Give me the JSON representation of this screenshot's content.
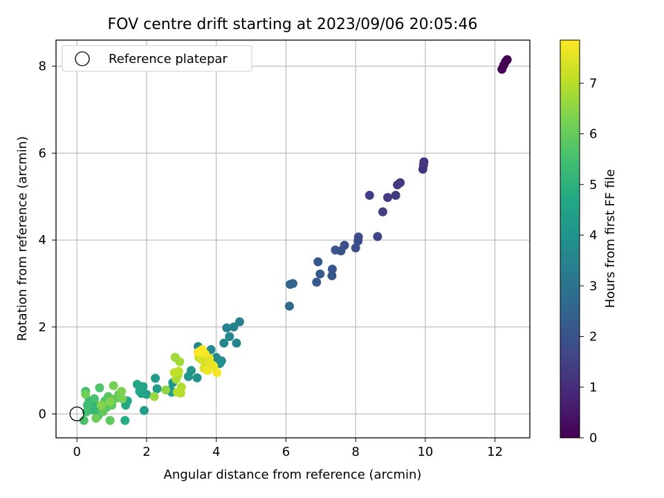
{
  "chart_data": {
    "type": "scatter",
    "title": "FOV centre drift starting at 2023/09/06 20:05:46",
    "xlabel": "Angular distance from reference (arcmin)",
    "ylabel": "Rotation from reference (arcmin)",
    "xlim": [
      -0.6,
      13.0
    ],
    "ylim": [
      -0.55,
      8.6
    ],
    "xticks": [
      0,
      2,
      4,
      6,
      8,
      10,
      12
    ],
    "yticks": [
      0,
      2,
      4,
      6,
      8
    ],
    "xtick_labels": [
      "0",
      "2",
      "4",
      "6",
      "8",
      "10",
      "12"
    ],
    "ytick_labels": [
      "0",
      "2",
      "4",
      "6",
      "8"
    ],
    "grid": true,
    "legend": {
      "position": "top-left",
      "entries": [
        "Reference platepar"
      ]
    },
    "reference_point": {
      "x": 0,
      "y": 0
    },
    "colorbar": {
      "label": "Hours from first FF file",
      "range": [
        0,
        7.85
      ],
      "ticks": [
        0,
        1,
        2,
        3,
        4,
        5,
        6,
        7
      ],
      "tick_labels": [
        "0",
        "1",
        "2",
        "3",
        "4",
        "5",
        "6",
        "7"
      ],
      "colormap": "viridis"
    },
    "series": [
      {
        "points": [
          [
            12.2,
            7.93,
            0.05
          ],
          [
            12.25,
            8.02,
            0.03
          ],
          [
            12.3,
            8.1,
            0.02
          ],
          [
            12.35,
            8.15,
            0.0
          ],
          [
            9.93,
            5.63,
            1.2
          ],
          [
            9.95,
            5.73,
            1.18
          ],
          [
            9.96,
            5.8,
            1.15
          ],
          [
            9.28,
            5.32,
            1.3
          ],
          [
            9.2,
            5.27,
            1.32
          ],
          [
            9.15,
            5.03,
            1.35
          ],
          [
            8.92,
            4.98,
            1.38
          ],
          [
            8.78,
            4.65,
            1.45
          ],
          [
            8.4,
            5.03,
            1.4
          ],
          [
            8.63,
            4.08,
            1.6
          ],
          [
            8.08,
            4.07,
            1.8
          ],
          [
            8.07,
            3.98,
            1.82
          ],
          [
            8.0,
            3.82,
            1.85
          ],
          [
            7.68,
            3.88,
            1.9
          ],
          [
            7.58,
            3.75,
            1.95
          ],
          [
            7.42,
            3.77,
            1.98
          ],
          [
            7.33,
            3.33,
            2.05
          ],
          [
            7.32,
            3.18,
            2.1
          ],
          [
            6.98,
            3.22,
            2.2
          ],
          [
            6.92,
            3.5,
            2.15
          ],
          [
            6.88,
            3.03,
            2.25
          ],
          [
            6.12,
            2.98,
            2.6
          ],
          [
            6.2,
            3.0,
            2.55
          ],
          [
            6.1,
            2.48,
            2.7
          ],
          [
            4.67,
            2.12,
            3.4
          ],
          [
            4.5,
            2.0,
            3.45
          ],
          [
            4.3,
            1.98,
            3.5
          ],
          [
            4.38,
            1.78,
            3.55
          ],
          [
            4.22,
            1.63,
            3.6
          ],
          [
            4.58,
            1.63,
            3.52
          ],
          [
            3.85,
            1.48,
            3.7
          ],
          [
            4.0,
            1.3,
            3.75
          ],
          [
            4.15,
            1.22,
            3.8
          ],
          [
            4.1,
            1.16,
            3.85
          ],
          [
            3.48,
            1.55,
            3.65
          ],
          [
            3.7,
            1.2,
            3.9
          ],
          [
            3.45,
            0.83,
            4.0
          ],
          [
            3.2,
            0.86,
            4.05
          ],
          [
            3.28,
            1.0,
            4.1
          ],
          [
            2.75,
            0.72,
            4.2
          ],
          [
            2.68,
            0.55,
            4.25
          ],
          [
            2.72,
            0.5,
            4.3
          ],
          [
            2.25,
            0.82,
            4.3
          ],
          [
            2.3,
            0.58,
            4.35
          ],
          [
            2.0,
            0.45,
            4.4
          ],
          [
            1.93,
            0.08,
            4.45
          ],
          [
            1.9,
            0.63,
            4.5
          ],
          [
            1.85,
            0.47,
            4.55
          ],
          [
            1.73,
            0.68,
            4.6
          ],
          [
            1.8,
            0.52,
            4.65
          ],
          [
            1.45,
            0.3,
            4.7
          ],
          [
            1.4,
            0.2,
            4.75
          ],
          [
            1.38,
            -0.15,
            4.8
          ],
          [
            0.45,
            0.2,
            5.0
          ],
          [
            0.4,
            0.1,
            5.05
          ],
          [
            0.5,
            0.25,
            5.1
          ],
          [
            0.38,
            0.15,
            5.15
          ],
          [
            0.35,
            0.3,
            5.2
          ],
          [
            0.55,
            0.05,
            5.25
          ],
          [
            0.6,
            -0.05,
            5.3
          ],
          [
            0.7,
            0.1,
            5.35
          ],
          [
            0.3,
            0.2,
            5.4
          ],
          [
            0.28,
            0.05,
            5.45
          ],
          [
            0.25,
            0.52,
            5.5
          ],
          [
            0.5,
            0.35,
            5.55
          ],
          [
            0.2,
            -0.15,
            5.6
          ],
          [
            0.65,
            0.6,
            5.65
          ],
          [
            0.8,
            0.3,
            5.7
          ],
          [
            0.85,
            0.15,
            5.75
          ],
          [
            0.9,
            0.4,
            5.8
          ],
          [
            1.0,
            0.2,
            5.85
          ],
          [
            0.95,
            -0.15,
            5.9
          ],
          [
            0.75,
            0.05,
            5.95
          ],
          [
            1.1,
            0.35,
            6.0
          ],
          [
            1.2,
            0.45,
            6.05
          ],
          [
            0.55,
            -0.1,
            6.1
          ],
          [
            0.25,
            0.45,
            6.15
          ],
          [
            1.05,
            0.65,
            6.2
          ],
          [
            1.3,
            0.35,
            6.25
          ],
          [
            1.28,
            0.52,
            6.3
          ],
          [
            0.95,
            0.28,
            6.35
          ],
          [
            0.7,
            0.2,
            6.4
          ],
          [
            2.55,
            0.55,
            6.5
          ],
          [
            2.22,
            0.4,
            6.6
          ],
          [
            2.82,
            1.3,
            6.7
          ],
          [
            2.95,
            1.2,
            6.75
          ],
          [
            2.9,
            0.9,
            6.8
          ],
          [
            2.85,
            0.8,
            6.85
          ],
          [
            3.0,
            0.62,
            6.9
          ],
          [
            2.98,
            0.48,
            6.95
          ],
          [
            2.88,
            0.5,
            7.0
          ],
          [
            2.92,
            0.98,
            7.05
          ],
          [
            2.8,
            0.95,
            7.1
          ],
          [
            3.5,
            1.3,
            7.2
          ],
          [
            3.55,
            1.45,
            7.25
          ],
          [
            3.62,
            1.38,
            7.3
          ],
          [
            3.58,
            1.25,
            7.35
          ],
          [
            3.7,
            1.15,
            7.4
          ],
          [
            3.65,
            1.05,
            7.45
          ],
          [
            3.8,
            1.28,
            7.5
          ],
          [
            3.85,
            1.15,
            7.55
          ],
          [
            3.92,
            1.1,
            7.6
          ],
          [
            3.75,
            1.0,
            7.65
          ],
          [
            3.68,
            1.38,
            7.7
          ],
          [
            4.02,
            0.95,
            7.75
          ],
          [
            3.48,
            1.42,
            7.8
          ],
          [
            3.6,
            1.48,
            7.82
          ]
        ]
      }
    ]
  }
}
